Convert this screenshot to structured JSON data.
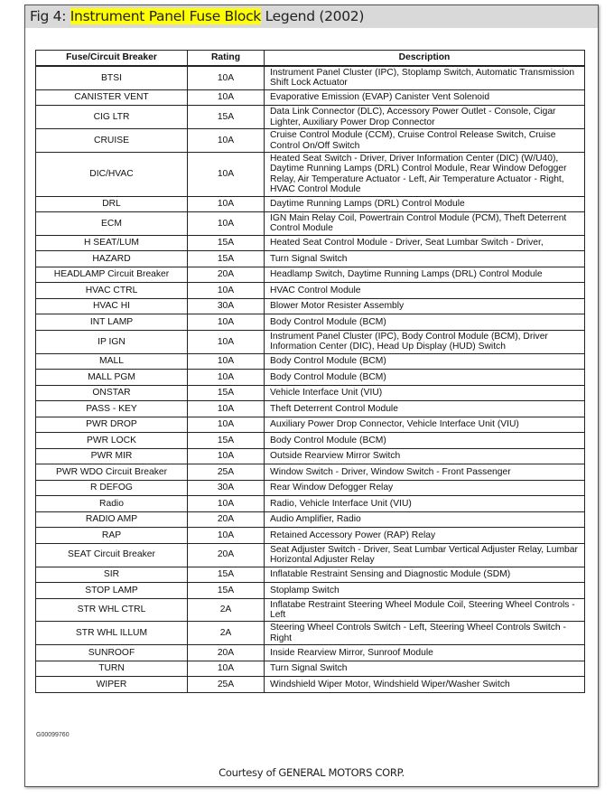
{
  "title": {
    "prefix": "Fig 4: ",
    "highlight": "Instrument Panel Fuse Block",
    "suffix": " Legend (2002)",
    "highlight_color": "#ffff00"
  },
  "table": {
    "headers": [
      "Fuse/Circuit Breaker",
      "Rating",
      "Description"
    ],
    "rows": [
      [
        "BTSI",
        "10A",
        "Instrument Panel Cluster (IPC), Stoplamp Switch, Automatic Transmission Shift Lock Actuator"
      ],
      [
        "CANISTER VENT",
        "10A",
        "Evaporative Emission (EVAP) Canister Vent Solenoid"
      ],
      [
        "CIG LTR",
        "15A",
        "Data Link Connector (DLC), Accessory Power Outlet - Console, Cigar Lighter, Auxiliary Power Drop Connector"
      ],
      [
        "CRUISE",
        "10A",
        "Cruise Control Module (CCM), Cruise Control Release Switch, Cruise Control On/Off Switch"
      ],
      [
        "DIC/HVAC",
        "10A",
        "Heated Seat Switch - Driver, Driver Information Center (DIC) (W/U40), Daytime Running Lamps (DRL) Control Module, Rear Window Defogger Relay, Air Temperature Actuator - Left, Air Temperature Actuator - Right, HVAC Control Module"
      ],
      [
        "DRL",
        "10A",
        "Daytime Running Lamps (DRL) Control Module"
      ],
      [
        "ECM",
        "10A",
        "IGN Main Relay Coil, Powertrain Control Module (PCM), Theft Deterrent Control Module"
      ],
      [
        "H SEAT/LUM",
        "15A",
        "Heated Seat Control Module - Driver, Seat Lumbar Switch - Driver,"
      ],
      [
        "HAZARD",
        "15A",
        "Turn Signal Switch"
      ],
      [
        "HEADLAMP Circuit Breaker",
        "20A",
        "Headlamp Switch, Daytime Running Lamps (DRL) Control Module"
      ],
      [
        "HVAC CTRL",
        "10A",
        "HVAC Control Module"
      ],
      [
        "HVAC HI",
        "30A",
        "Blower Motor Resister Assembly"
      ],
      [
        "INT LAMP",
        "10A",
        "Body Control Module (BCM)"
      ],
      [
        "IP IGN",
        "10A",
        "Instrument Panel Cluster (IPC), Body Control Module (BCM), Driver Information Center (DIC), Head Up Display (HUD) Switch"
      ],
      [
        "MALL",
        "10A",
        "Body Control Module (BCM)"
      ],
      [
        "MALL PGM",
        "10A",
        "Body Control Module (BCM)"
      ],
      [
        "ONSTAR",
        "15A",
        "Vehicle Interface Unit (VIU)"
      ],
      [
        "PASS - KEY",
        "10A",
        "Theft Deterrent Control Module"
      ],
      [
        "PWR DROP",
        "10A",
        "Auxiliary Power Drop Connector, Vehicle Interface Unit (VIU)"
      ],
      [
        "PWR LOCK",
        "15A",
        "Body Control Module (BCM)"
      ],
      [
        "PWR MIR",
        "10A",
        "Outside Rearview Mirror Switch"
      ],
      [
        "PWR WDO Circuit Breaker",
        "25A",
        "Window Switch - Driver, Window Switch - Front Passenger"
      ],
      [
        "R DEFOG",
        "30A",
        "Rear Window Defogger Relay"
      ],
      [
        "Radio",
        "10A",
        "Radio, Vehicle Interface Unit (VIU)"
      ],
      [
        "RADIO AMP",
        "20A",
        "Audio Amplifier, Radio"
      ],
      [
        "RAP",
        "10A",
        "Retained Accessory Power (RAP) Relay"
      ],
      [
        "SEAT Circuit Breaker",
        "20A",
        "Seat Adjuster Switch - Driver, Seat Lumbar Vertical Adjuster Relay, Lumbar Horizontal Adjuster Relay"
      ],
      [
        "SIR",
        "15A",
        "Inflatable Restraint Sensing and Diagnostic Module (SDM)"
      ],
      [
        "STOP LAMP",
        "15A",
        "Stoplamp Switch"
      ],
      [
        "STR WHL CTRL",
        "2A",
        "Inflatabe Restraint Steering Wheel Module Coil, Steering Wheel Controls - Left"
      ],
      [
        "STR WHL ILLUM",
        "2A",
        "Steering Wheel Controls Switch - Left, Steering Wheel Controls Switch - Right"
      ],
      [
        "SUNROOF",
        "20A",
        "Inside Rearview Mirror, Sunroof Module"
      ],
      [
        "TURN",
        "10A",
        "Turn Signal Switch"
      ],
      [
        "WIPER",
        "25A",
        "Windshield Wiper Motor, Windshield Wiper/Washer Switch"
      ]
    ]
  },
  "figure_code": "G00099760",
  "courtesy": "Courtesy of GENERAL MOTORS CORP."
}
